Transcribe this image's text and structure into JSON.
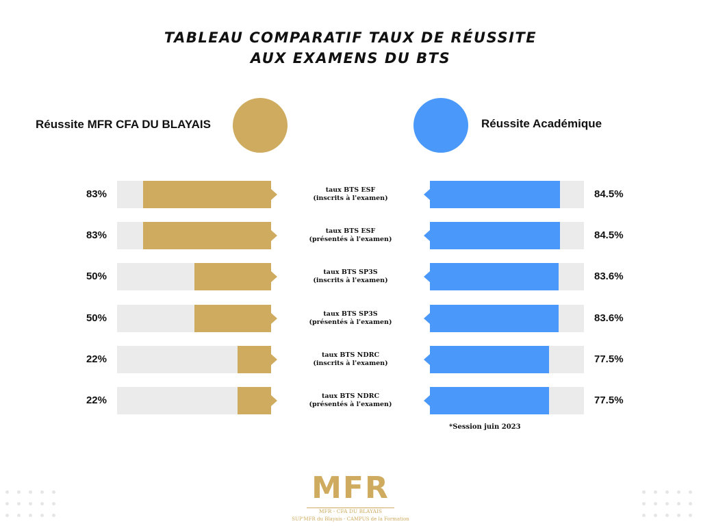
{
  "colors": {
    "mfr": "#ceab5f",
    "academic": "#4a99fa",
    "track": "#ebebeb"
  },
  "title": {
    "line1": "TABLEAU COMPARATIF TAUX DE RÉUSSITE",
    "line2": "AUX EXAMENS DU BTS"
  },
  "legend": {
    "left": "Réussite MFR CFA DU BLAYAIS",
    "right": "Réussite Académique"
  },
  "chart_data": {
    "type": "bar",
    "categories": [
      "taux BTS ESF (inscrits à l'examen)",
      "taux BTS ESF (présentés à l'examen)",
      "taux BTS SP3S (inscrits à l'examen)",
      "taux BTS SP3S (présentés à l'examen)",
      "taux BTS NDRC (inscrits à l'examen)",
      "taux BTS NDRC (présentés à l'examen)"
    ],
    "series": [
      {
        "name": "Réussite MFR CFA DU BLAYAIS",
        "values": [
          83,
          83,
          50,
          50,
          22,
          22
        ]
      },
      {
        "name": "Réussite Académique",
        "values": [
          84.5,
          84.5,
          83.6,
          83.6,
          77.5,
          77.5
        ]
      }
    ],
    "ylim": [
      0,
      100
    ]
  },
  "rows": [
    {
      "cat1": "taux BTS ESF",
      "cat2": "(inscrits à l'examen)",
      "left_label": "83%",
      "right_label": "84.5%"
    },
    {
      "cat1": "taux BTS ESF",
      "cat2": "(présentés à l'examen)",
      "left_label": "83%",
      "right_label": "84.5%"
    },
    {
      "cat1": "taux BTS SP3S",
      "cat2": "(inscrits à l'examen)",
      "left_label": "50%",
      "right_label": "83.6%"
    },
    {
      "cat1": "taux BTS SP3S",
      "cat2": "(présentés à l'examen)",
      "left_label": "50%",
      "right_label": "83.6%"
    },
    {
      "cat1": "taux BTS NDRC",
      "cat2": "(inscrits à l'examen)",
      "left_label": "22%",
      "right_label": "77.5%"
    },
    {
      "cat1": "taux BTS NDRC",
      "cat2": "(présentés à l'examen)",
      "left_label": "22%",
      "right_label": "77.5%"
    }
  ],
  "note": "*Session juin 2023",
  "logo": {
    "mark": "MFR",
    "line1": "MFR - CFA DU BLAYAIS",
    "line2": "SUP'MFR du Blayais - CAMPUS de la Formation"
  }
}
